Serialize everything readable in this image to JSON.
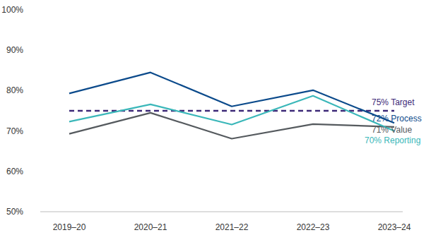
{
  "chart_data": {
    "type": "line",
    "categories": [
      "2019–20",
      "2020–21",
      "2021–22",
      "2022–23",
      "2023–24"
    ],
    "series": [
      {
        "name": "Target",
        "color": "#3d2a78",
        "line_style": "dashed",
        "values": [
          75,
          75,
          75,
          75,
          75
        ],
        "end_label": "75% Target"
      },
      {
        "name": "Process",
        "color": "#0b4a8b",
        "line_style": "solid",
        "values": [
          79.3,
          84.5,
          76.1,
          80.1,
          72
        ],
        "end_label": "72% Process"
      },
      {
        "name": "Value",
        "color": "#555a5e",
        "line_style": "solid",
        "values": [
          69.3,
          74.5,
          68.1,
          71.7,
          71
        ],
        "end_label": "71% Value"
      },
      {
        "name": "Reporting",
        "color": "#3ab7b9",
        "line_style": "solid",
        "values": [
          72.3,
          76.6,
          71.6,
          78.7,
          70
        ],
        "end_label": "70% Reporting"
      }
    ],
    "ylim": [
      50,
      100
    ],
    "yticks": [
      {
        "value": 50,
        "label": "50%"
      },
      {
        "value": 60,
        "label": "60%"
      },
      {
        "value": 70,
        "label": "70%"
      },
      {
        "value": 80,
        "label": "80%"
      },
      {
        "value": 90,
        "label": "90%"
      },
      {
        "value": 100,
        "label": "100%"
      }
    ],
    "grid": false
  }
}
